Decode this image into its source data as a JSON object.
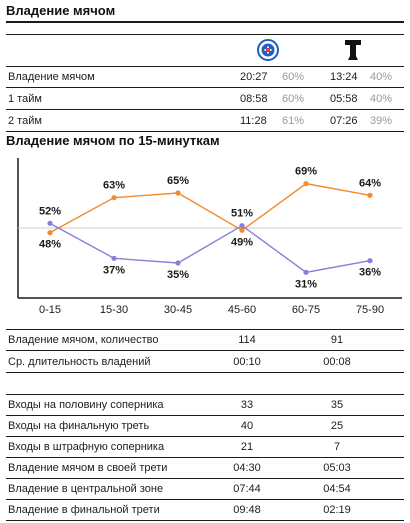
{
  "possession_title": "Владение мячом",
  "teams": [
    {
      "logo": "circular-club-crest-icon",
      "color": "#1f5fbf"
    },
    {
      "logo": "black-tower-crest-icon",
      "color": "#111111"
    }
  ],
  "possession_rows": [
    {
      "label": "Владение мячом",
      "t1": "20:27",
      "p1": "60%",
      "t2": "13:24",
      "p2": "40%"
    },
    {
      "label": "1 тайм",
      "t1": "08:58",
      "p1": "60%",
      "t2": "05:58",
      "p2": "40%"
    },
    {
      "label": "2 тайм",
      "t1": "11:28",
      "p1": "61%",
      "t2": "07:26",
      "p2": "39%"
    }
  ],
  "chart_title": "Владение мячом по 15-минуткам",
  "chart_data": {
    "type": "line",
    "categories": [
      "0-15",
      "15-30",
      "30-45",
      "45-60",
      "60-75",
      "75-90"
    ],
    "series": [
      {
        "values": [
          48,
          63,
          65,
          49,
          69,
          64
        ],
        "labels": [
          "48%",
          "63%",
          "65%",
          "49%",
          "69%",
          "64%"
        ],
        "color": "#f28a2e"
      },
      {
        "values": [
          52,
          37,
          35,
          51,
          31,
          36
        ],
        "labels": [
          "52%",
          "37%",
          "35%",
          "51%",
          "31%",
          "36%"
        ],
        "color": "#8a7ed8"
      }
    ],
    "ylim": [
      20,
      80
    ],
    "reference_line": 50,
    "grid": false
  },
  "stats_group1": [
    {
      "label": "Владение мячом, количество",
      "v1": "114",
      "v2": "91"
    },
    {
      "label": "Ср. длительность владений",
      "v1": "00:10",
      "v2": "00:08"
    }
  ],
  "stats_group2": [
    {
      "label": "Входы на половину соперника",
      "v1": "33",
      "v2": "35"
    },
    {
      "label": "Входы на финальную треть",
      "v1": "40",
      "v2": "25"
    },
    {
      "label": "Входы в штрафную соперника",
      "v1": "21",
      "v2": "7"
    },
    {
      "label": "Владение мячом в своей трети",
      "v1": "04:30",
      "v2": "05:03"
    },
    {
      "label": "Владение в центральной зоне",
      "v1": "07:44",
      "v2": "04:54"
    },
    {
      "label": "Владение в финальной трети",
      "v1": "09:48",
      "v2": "02:19"
    }
  ]
}
